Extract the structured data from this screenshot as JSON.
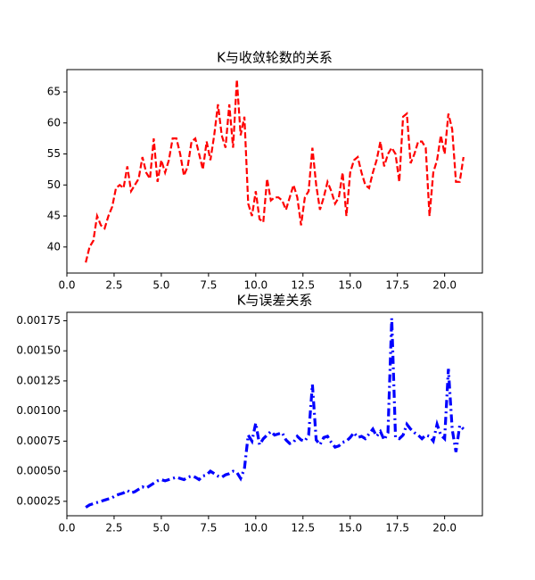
{
  "chart_data": [
    {
      "type": "line",
      "title": "K与收敛轮数的关系",
      "x": [
        1,
        1.2,
        1.4,
        1.6,
        1.8,
        2,
        2.2,
        2.4,
        2.6,
        2.8,
        3,
        3.2,
        3.4,
        3.6,
        3.8,
        4,
        4.2,
        4.4,
        4.6,
        4.8,
        5,
        5.2,
        5.4,
        5.6,
        5.8,
        6,
        6.2,
        6.4,
        6.6,
        6.8,
        7,
        7.2,
        7.4,
        7.6,
        7.8,
        8,
        8.2,
        8.4,
        8.6,
        8.8,
        9,
        9.2,
        9.4,
        9.6,
        9.8,
        10,
        10.2,
        10.4,
        10.6,
        10.8,
        11,
        11.2,
        11.4,
        11.6,
        11.8,
        12,
        12.2,
        12.4,
        12.6,
        12.8,
        13,
        13.2,
        13.4,
        13.6,
        13.8,
        14,
        14.2,
        14.4,
        14.6,
        14.8,
        15,
        15.2,
        15.4,
        15.6,
        15.8,
        16,
        16.2,
        16.4,
        16.6,
        16.8,
        17,
        17.2,
        17.4,
        17.6,
        17.8,
        18,
        18.2,
        18.4,
        18.6,
        18.8,
        19,
        19.2,
        19.4,
        19.6,
        19.8,
        20,
        20.2,
        20.4,
        20.6,
        20.8,
        21
      ],
      "series": [
        {
          "color": "#ff0000",
          "line_style": "dashed",
          "values": [
            37.5,
            40,
            41,
            45,
            43.5,
            43,
            45,
            46.5,
            49.5,
            50,
            49.5,
            53,
            49,
            50,
            51,
            54.5,
            52,
            51,
            57.5,
            50.5,
            54,
            52,
            54,
            57.5,
            57.5,
            55,
            51.5,
            53,
            57,
            57.5,
            55,
            52.5,
            57,
            54,
            58,
            63,
            58,
            56,
            63,
            56,
            67,
            58,
            61,
            47,
            45,
            49,
            44.5,
            44,
            51,
            47.5,
            48,
            48,
            47.5,
            46,
            48,
            50,
            48,
            43.5,
            48,
            49,
            56,
            50,
            46,
            48,
            50.5,
            49,
            47,
            48,
            52,
            45,
            52,
            54,
            54.5,
            52,
            50,
            49.5,
            52,
            54,
            57,
            53,
            55,
            56,
            55,
            50.5,
            61,
            61.5,
            53.5,
            55,
            57,
            57,
            56,
            45,
            52,
            54,
            58,
            55,
            61.5,
            59,
            50.5,
            50.5,
            54.5
          ]
        }
      ],
      "xlim": [
        0,
        22
      ],
      "ylim": [
        35.8,
        68.6
      ],
      "xticks": [
        {
          "value": 0,
          "label": "0.0"
        },
        2.5,
        {
          "value": 5,
          "label": "5.0"
        },
        7.5,
        {
          "value": 10,
          "label": "10.0"
        },
        12.5,
        {
          "value": 15,
          "label": "15.0"
        },
        17.5,
        {
          "value": 20,
          "label": "20.0"
        }
      ],
      "yticks": [
        40,
        45,
        50,
        55,
        60,
        65
      ]
    },
    {
      "type": "line",
      "title": "K与误差关系",
      "x": [
        1,
        1.2,
        1.4,
        1.6,
        1.8,
        2,
        2.2,
        2.4,
        2.6,
        2.8,
        3,
        3.2,
        3.4,
        3.6,
        3.8,
        4,
        4.2,
        4.4,
        4.6,
        4.8,
        5,
        5.2,
        5.4,
        5.6,
        5.8,
        6,
        6.2,
        6.4,
        6.6,
        6.8,
        7,
        7.2,
        7.4,
        7.6,
        7.8,
        8,
        8.2,
        8.4,
        8.6,
        8.8,
        9,
        9.2,
        9.4,
        9.6,
        9.8,
        10,
        10.2,
        10.4,
        10.6,
        10.8,
        11,
        11.2,
        11.4,
        11.6,
        11.8,
        12,
        12.2,
        12.4,
        12.6,
        12.8,
        13,
        13.2,
        13.4,
        13.6,
        13.8,
        14,
        14.2,
        14.4,
        14.6,
        14.8,
        15,
        15.2,
        15.4,
        15.6,
        15.8,
        16,
        16.2,
        16.4,
        16.6,
        16.8,
        17,
        17.2,
        17.4,
        17.6,
        17.8,
        18,
        18.2,
        18.4,
        18.6,
        18.8,
        19,
        19.2,
        19.4,
        19.6,
        19.8,
        20,
        20.2,
        20.4,
        20.6,
        20.8,
        21
      ],
      "series": [
        {
          "color": "#0000ff",
          "line_style": "dashdot",
          "values": [
            0.0002,
            0.00022,
            0.00023,
            0.00024,
            0.00025,
            0.00026,
            0.00027,
            0.00028,
            0.0003,
            0.00031,
            0.00032,
            0.00034,
            0.00032,
            0.00033,
            0.00035,
            0.00037,
            0.00036,
            0.00038,
            0.0004,
            0.00042,
            0.00043,
            0.00042,
            0.00043,
            0.00044,
            0.00045,
            0.00044,
            0.00043,
            0.00045,
            0.00046,
            0.00045,
            0.00043,
            0.00046,
            0.00047,
            0.0005,
            0.00048,
            0.00046,
            0.00045,
            0.00047,
            0.00048,
            0.0005,
            0.00049,
            0.00044,
            0.00052,
            0.0008,
            0.00075,
            0.0009,
            0.00072,
            0.00077,
            0.0008,
            0.00083,
            0.0008,
            0.00081,
            0.00082,
            0.00076,
            0.00073,
            0.00074,
            0.00079,
            0.00076,
            0.00075,
            0.0008,
            0.00122,
            0.00076,
            0.00072,
            0.00078,
            0.00079,
            0.00074,
            0.0007,
            0.00071,
            0.00074,
            0.00075,
            0.00078,
            0.00082,
            0.00078,
            0.00079,
            0.00077,
            0.00081,
            0.00085,
            0.00079,
            0.00083,
            0.00076,
            0.00082,
            0.00177,
            0.00078,
            0.00077,
            0.0008,
            0.00089,
            0.00085,
            0.00082,
            0.0008,
            0.00077,
            0.0008,
            0.00079,
            0.00075,
            0.00089,
            0.0008,
            0.00077,
            0.00135,
            0.00085,
            0.00066,
            0.00088,
            0.00085
          ]
        }
      ],
      "xlim": [
        0,
        22
      ],
      "ylim": [
        0.00013,
        0.00182
      ],
      "xticks": [
        {
          "value": 0,
          "label": "0.0"
        },
        2.5,
        {
          "value": 5,
          "label": "5.0"
        },
        7.5,
        {
          "value": 10,
          "label": "10.0"
        },
        12.5,
        {
          "value": 15,
          "label": "15.0"
        },
        17.5,
        {
          "value": 20,
          "label": "20.0"
        }
      ],
      "yticks": [
        0.00025,
        {
          "value": 0.0005,
          "label": "0.00050"
        },
        0.00075,
        {
          "value": 0.001,
          "label": "0.00100"
        },
        0.00125,
        {
          "value": 0.0015,
          "label": "0.00150"
        },
        0.00175
      ]
    }
  ]
}
